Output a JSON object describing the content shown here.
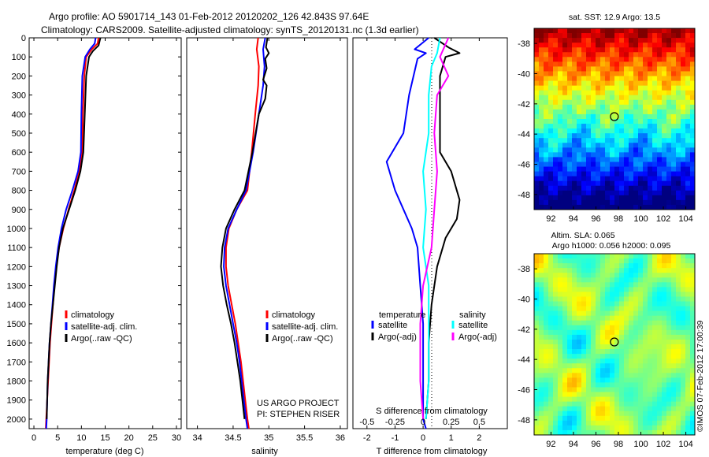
{
  "title": {
    "line1": "Argo profile: AO 5901714_143 01-Feb-2012 20120202_126 42.843S 97.64E",
    "line2": "Climatology: CARS2009. Satellite-adjusted climatology: synTS_20120131.nc (1.3d earlier)"
  },
  "colors": {
    "climatology": "#ff0000",
    "satellite": "#0000ff",
    "argo": "#000000",
    "sal_satellite": "#00ffff",
    "sal_argo": "#ff00ff"
  },
  "chart_data": [
    {
      "type": "line",
      "name": "temperature-profile",
      "xlabel": "temperature (deg C)",
      "ylabel": "",
      "xlim": [
        -1,
        31
      ],
      "ylim": [
        2050,
        0
      ],
      "xticks": [
        0,
        5,
        10,
        15,
        20,
        25,
        30
      ],
      "yticks": [
        0,
        100,
        200,
        300,
        400,
        500,
        600,
        700,
        800,
        900,
        1000,
        1100,
        1200,
        1300,
        1400,
        1500,
        1600,
        1700,
        1800,
        1900,
        2000
      ],
      "legend": [
        "climatology",
        "satellite-adj. clim.",
        "Argo(..raw -QC)"
      ],
      "series": [
        {
          "name": "climatology",
          "color": "#ff0000",
          "points": [
            [
              13.6,
              0
            ],
            [
              13.4,
              30
            ],
            [
              12.2,
              60
            ],
            [
              11.0,
              100
            ],
            [
              10.6,
              200
            ],
            [
              10.3,
              400
            ],
            [
              10.2,
              600
            ],
            [
              9.6,
              700
            ],
            [
              8.5,
              800
            ],
            [
              7.3,
              900
            ],
            [
              6.2,
              1000
            ],
            [
              5.3,
              1100
            ],
            [
              4.7,
              1200
            ],
            [
              4.3,
              1300
            ],
            [
              4.0,
              1400
            ],
            [
              3.7,
              1500
            ],
            [
              3.4,
              1600
            ],
            [
              3.2,
              1700
            ],
            [
              3.0,
              1800
            ],
            [
              2.8,
              1900
            ],
            [
              2.6,
              2000
            ],
            [
              2.5,
              2050
            ]
          ]
        },
        {
          "name": "satellite-adj. clim.",
          "color": "#0000ff",
          "points": [
            [
              13.0,
              0
            ],
            [
              12.8,
              30
            ],
            [
              11.8,
              60
            ],
            [
              10.8,
              100
            ],
            [
              10.2,
              200
            ],
            [
              10.0,
              400
            ],
            [
              9.9,
              600
            ],
            [
              9.3,
              700
            ],
            [
              8.1,
              800
            ],
            [
              6.8,
              900
            ],
            [
              5.8,
              1000
            ],
            [
              5.1,
              1100
            ],
            [
              4.6,
              1200
            ],
            [
              4.2,
              1300
            ],
            [
              3.9,
              1400
            ],
            [
              3.6,
              1500
            ],
            [
              3.3,
              1600
            ],
            [
              3.1,
              1700
            ],
            [
              2.9,
              1800
            ],
            [
              2.8,
              1900
            ],
            [
              2.7,
              2000
            ],
            [
              2.6,
              2050
            ]
          ]
        },
        {
          "name": "Argo(..raw -QC)",
          "color": "#000000",
          "points": [
            [
              14.0,
              0
            ],
            [
              13.6,
              40
            ],
            [
              12.4,
              70
            ],
            [
              11.6,
              100
            ],
            [
              11.0,
              200
            ],
            [
              10.7,
              400
            ],
            [
              10.4,
              600
            ],
            [
              9.8,
              700
            ],
            [
              8.7,
              800
            ],
            [
              7.4,
              900
            ],
            [
              6.1,
              1000
            ],
            [
              5.3,
              1100
            ],
            [
              4.8,
              1200
            ],
            [
              4.4,
              1300
            ],
            [
              4.0,
              1400
            ],
            [
              3.6,
              1500
            ],
            [
              3.3,
              1600
            ],
            [
              3.1,
              1700
            ],
            [
              2.9,
              1800
            ],
            [
              2.8,
              1900
            ],
            [
              2.7,
              2000
            ]
          ]
        }
      ]
    },
    {
      "type": "line",
      "name": "salinity-profile",
      "xlabel": "salinity",
      "ylabel": "",
      "xlim": [
        33.85,
        36.1
      ],
      "ylim": [
        2050,
        0
      ],
      "xticks": [
        34,
        34.5,
        35,
        35.5,
        36
      ],
      "xticklabels": [
        "34",
        "34.5",
        "35",
        "35.5",
        "36"
      ],
      "legend": [
        "climatology",
        "satellite-adj. clim.",
        "Argo(..raw -QC)"
      ],
      "series": [
        {
          "name": "climatology",
          "color": "#ff0000",
          "points": [
            [
              34.85,
              0
            ],
            [
              34.83,
              60
            ],
            [
              34.86,
              150
            ],
            [
              34.85,
              250
            ],
            [
              34.81,
              400
            ],
            [
              34.76,
              600
            ],
            [
              34.7,
              800
            ],
            [
              34.55,
              900
            ],
            [
              34.44,
              1000
            ],
            [
              34.4,
              1100
            ],
            [
              34.4,
              1200
            ],
            [
              34.43,
              1300
            ],
            [
              34.48,
              1400
            ],
            [
              34.53,
              1500
            ],
            [
              34.57,
              1600
            ],
            [
              34.61,
              1700
            ],
            [
              34.64,
              1800
            ],
            [
              34.67,
              1900
            ],
            [
              34.7,
              2000
            ],
            [
              34.72,
              2050
            ]
          ]
        },
        {
          "name": "satellite-adj. clim.",
          "color": "#0000ff",
          "points": [
            [
              34.95,
              0
            ],
            [
              34.92,
              60
            ],
            [
              34.94,
              150
            ],
            [
              34.92,
              250
            ],
            [
              34.86,
              400
            ],
            [
              34.78,
              600
            ],
            [
              34.68,
              800
            ],
            [
              34.55,
              900
            ],
            [
              34.43,
              1000
            ],
            [
              34.38,
              1100
            ],
            [
              34.37,
              1200
            ],
            [
              34.4,
              1300
            ],
            [
              34.45,
              1400
            ],
            [
              34.5,
              1500
            ],
            [
              34.55,
              1600
            ],
            [
              34.59,
              1700
            ],
            [
              34.62,
              1800
            ],
            [
              34.65,
              1900
            ],
            [
              34.68,
              2000
            ],
            [
              34.7,
              2050
            ]
          ]
        },
        {
          "name": "Argo(..raw -QC)",
          "color": "#000000",
          "points": [
            [
              34.98,
              0
            ],
            [
              34.96,
              50
            ],
            [
              35.0,
              80
            ],
            [
              34.95,
              110
            ],
            [
              34.97,
              160
            ],
            [
              34.92,
              220
            ],
            [
              34.97,
              250
            ],
            [
              34.95,
              320
            ],
            [
              34.86,
              400
            ],
            [
              34.77,
              600
            ],
            [
              34.66,
              800
            ],
            [
              34.52,
              900
            ],
            [
              34.4,
              1000
            ],
            [
              34.35,
              1100
            ],
            [
              34.33,
              1200
            ],
            [
              34.36,
              1300
            ],
            [
              34.41,
              1400
            ],
            [
              34.47,
              1500
            ],
            [
              34.52,
              1600
            ],
            [
              34.56,
              1700
            ],
            [
              34.6,
              1800
            ],
            [
              34.63,
              1900
            ],
            [
              34.66,
              2000
            ]
          ]
        }
      ]
    },
    {
      "type": "line",
      "name": "difference-profile",
      "xlabel": "T difference from climatology",
      "xlabel_top": "S difference from climatology",
      "xlim": [
        -2.5,
        3.0
      ],
      "ylim": [
        2050,
        0
      ],
      "xticks": [
        -2,
        -1,
        0,
        1,
        2
      ],
      "xticklabels_top": [
        "-0.5",
        "-0.25",
        "0",
        "0.25",
        "0.5"
      ],
      "legend_group_labels": [
        "temperature",
        "salinity"
      ],
      "legend": [
        "satellite",
        "Argo(-adj)",
        "satellite",
        "Argo(-adj)"
      ],
      "series": [
        {
          "name": "temperature satellite",
          "color": "#0000ff",
          "points": [
            [
              0.2,
              0
            ],
            [
              -0.3,
              60
            ],
            [
              0.1,
              80
            ],
            [
              -0.2,
              110
            ],
            [
              -0.5,
              300
            ],
            [
              -0.7,
              500
            ],
            [
              -1.3,
              650
            ],
            [
              -1.0,
              800
            ],
            [
              -0.4,
              1000
            ],
            [
              -0.2,
              1100
            ],
            [
              -0.1,
              1300
            ],
            [
              0.0,
              1500
            ],
            [
              0.0,
              1800
            ],
            [
              0.0,
              2000
            ],
            [
              0.1,
              2050
            ]
          ]
        },
        {
          "name": "temperature Argo(-adj)",
          "color": "#000000",
          "points": [
            [
              0.4,
              0
            ],
            [
              0.9,
              50
            ],
            [
              1.3,
              80
            ],
            [
              0.8,
              100
            ],
            [
              0.6,
              200
            ],
            [
              0.6,
              400
            ],
            [
              0.6,
              600
            ],
            [
              1.0,
              700
            ],
            [
              1.3,
              850
            ],
            [
              1.2,
              950
            ],
            [
              0.8,
              1050
            ],
            [
              0.5,
              1200
            ],
            [
              0.3,
              1400
            ],
            [
              0.2,
              1600
            ],
            [
              0.2,
              1800
            ],
            [
              0.1,
              2000
            ]
          ]
        },
        {
          "name": "salinity satellite",
          "color": "#00ffff",
          "points": [
            [
              0.6,
              0
            ],
            [
              0.5,
              80
            ],
            [
              0.3,
              150
            ],
            [
              0.2,
              300
            ],
            [
              0.2,
              500
            ],
            [
              0.0,
              700
            ],
            [
              0.1,
              900
            ],
            [
              0.0,
              1100
            ],
            [
              0.2,
              1300
            ],
            [
              0.2,
              1500
            ],
            [
              0.2,
              1800
            ],
            [
              0.1,
              2000
            ]
          ]
        },
        {
          "name": "salinity Argo(-adj)",
          "color": "#ff00ff",
          "points": [
            [
              0.9,
              0
            ],
            [
              0.6,
              100
            ],
            [
              0.9,
              200
            ],
            [
              0.5,
              300
            ],
            [
              0.4,
              500
            ],
            [
              0.5,
              700
            ],
            [
              0.4,
              900
            ],
            [
              0.3,
              1100
            ],
            [
              0.0,
              1300
            ],
            [
              -0.1,
              1500
            ],
            [
              -0.1,
              1800
            ],
            [
              0.0,
              2000
            ]
          ]
        }
      ]
    },
    {
      "type": "heatmap",
      "name": "sst-map",
      "title": "sat. SST: 12.9 Argo: 13.5",
      "xlim": [
        90.5,
        104.8
      ],
      "ylim": [
        -49,
        -37
      ],
      "xticks": [
        92,
        94,
        96,
        98,
        100,
        102,
        104
      ],
      "yticks": [
        -38,
        -40,
        -42,
        -44,
        -46,
        -48
      ],
      "marker": [
        97.64,
        -42.843
      ]
    },
    {
      "type": "heatmap",
      "name": "sla-map",
      "title_line1": "Altim. SLA: 0.065",
      "title_line2": "Argo h1000: 0.056 h2000: 0.095",
      "xlim": [
        90.5,
        104.8
      ],
      "ylim": [
        -49,
        -37
      ],
      "xticks": [
        92,
        94,
        96,
        98,
        100,
        102,
        104
      ],
      "yticks": [
        -38,
        -40,
        -42,
        -44,
        -46,
        -48
      ],
      "marker": [
        97.64,
        -42.843
      ]
    }
  ],
  "annotations": {
    "project_line1": "US ARGO PROJECT",
    "project_line2": "PI: STEPHEN RISER",
    "credit": "©IMOS 07-Feb-2012 17:00:39"
  }
}
